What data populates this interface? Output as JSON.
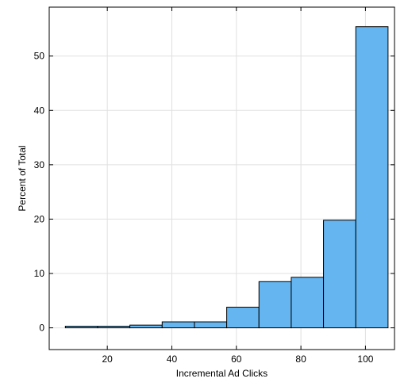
{
  "chart_data": {
    "type": "bar",
    "histogram": true,
    "title": "",
    "xlabel": "Incremental Ad Clicks",
    "ylabel": "Percent of Total",
    "xlim": [
      2,
      109
    ],
    "ylim": [
      -4,
      59
    ],
    "grid": true,
    "xticks": [
      20,
      40,
      60,
      80,
      100
    ],
    "yticks": [
      0,
      10,
      20,
      30,
      40,
      50
    ],
    "bins": [
      {
        "x0": 7,
        "x1": 17,
        "value": 0.3
      },
      {
        "x0": 17,
        "x1": 27,
        "value": 0.3
      },
      {
        "x0": 27,
        "x1": 37,
        "value": 0.5
      },
      {
        "x0": 37,
        "x1": 47,
        "value": 1.1
      },
      {
        "x0": 47,
        "x1": 57,
        "value": 1.1
      },
      {
        "x0": 57,
        "x1": 67,
        "value": 3.8
      },
      {
        "x0": 67,
        "x1": 77,
        "value": 8.5
      },
      {
        "x0": 77,
        "x1": 87,
        "value": 9.3
      },
      {
        "x0": 87,
        "x1": 97,
        "value": 19.8
      },
      {
        "x0": 97,
        "x1": 107,
        "value": 55.4
      }
    ],
    "bar_color": "#64b5f0",
    "edge_color": "#000000",
    "grid_color": "#e0e0e0"
  }
}
